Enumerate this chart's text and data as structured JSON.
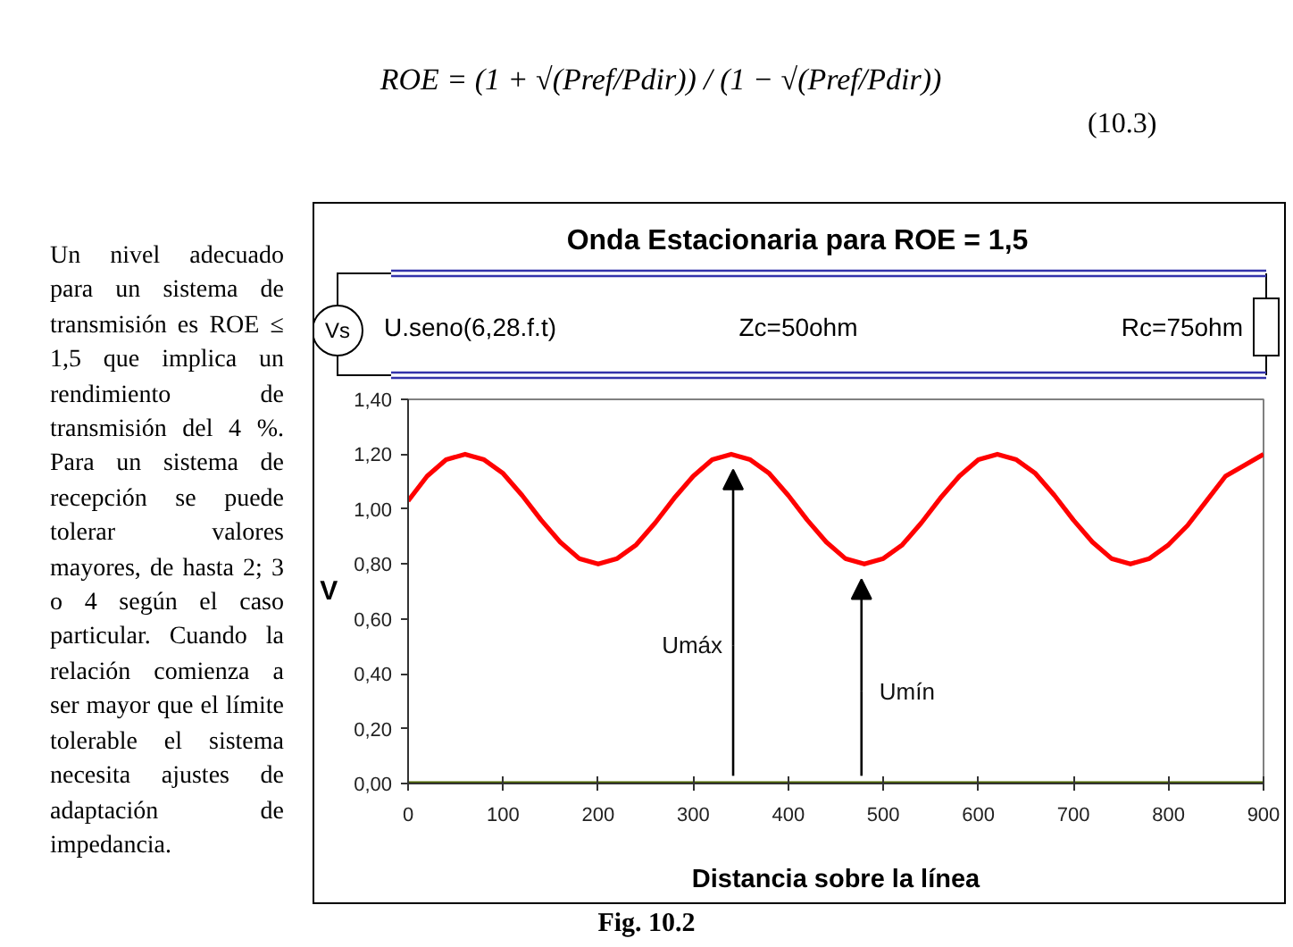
{
  "chart_data": {
    "type": "line",
    "title": "Onda Estacionaria para ROE = 1,5",
    "xlabel": "Distancia sobre la línea",
    "ylabel": "V",
    "xlim": [
      0,
      900
    ],
    "xticks": [
      0,
      100,
      200,
      300,
      400,
      500,
      600,
      700,
      800,
      900
    ],
    "ylim": [
      0,
      1.4
    ],
    "yticks": [
      {
        "value": 0,
        "label": "0,00"
      },
      {
        "value": 0.2,
        "label": "0,20"
      },
      {
        "value": 0.4,
        "label": "0,40"
      },
      {
        "value": 0.6,
        "label": "0,60"
      },
      {
        "value": 0.8,
        "label": "0,80"
      },
      {
        "value": 1.0,
        "label": "1,00"
      },
      {
        "value": 1.2,
        "label": "1,20"
      },
      {
        "value": 1.4,
        "label": "1,40"
      }
    ],
    "series": [
      {
        "color": "#ff0000",
        "x": [
          0,
          20,
          40,
          60,
          80,
          100,
          120,
          140,
          160,
          180,
          200,
          220,
          240,
          260,
          280,
          300,
          320,
          340,
          360,
          380,
          400,
          420,
          440,
          460,
          480,
          500,
          520,
          540,
          560,
          580,
          600,
          620,
          640,
          660,
          680,
          700,
          720,
          740,
          760,
          780,
          800,
          820,
          840,
          860,
          880,
          900
        ],
        "values": [
          1.03,
          1.12,
          1.18,
          1.2,
          1.18,
          1.13,
          1.05,
          0.96,
          0.88,
          0.82,
          0.8,
          0.82,
          0.87,
          0.95,
          1.04,
          1.12,
          1.18,
          1.2,
          1.18,
          1.13,
          1.05,
          0.96,
          0.88,
          0.82,
          0.8,
          0.82,
          0.87,
          0.95,
          1.04,
          1.12,
          1.18,
          1.2,
          1.18,
          1.13,
          1.05,
          0.96,
          0.88,
          0.82,
          0.8,
          0.82,
          0.87,
          0.94,
          1.03,
          1.12,
          1.16,
          1.2
        ]
      },
      {
        "color": "#4d6600",
        "x": [
          0,
          900
        ],
        "values": [
          0,
          0
        ]
      }
    ],
    "annotations": [
      "ROE = (1 + √(Pref/Pdir)) / (1 − √(Pref/Pdir))",
      "(10.3)",
      "Un nivel adecuado para un sistema de transmisión es ROE ≤ 1,5 que implica un rendimiento de transmisión del 4 %. Para un sistema de recepción se puede tolerar valores mayores, de hasta 2; 3 o 4 según el caso particular. Cuando la relación comienza a ser mayor que el límite tolerable el sistema necesita ajustes de adaptación de impedancia.",
      "Vs",
      "U.seno(6,28.f.t)",
      "Zc=50ohm",
      "Rc=75ohm",
      {
        "text": "Umáx",
        "x": 342,
        "y": 1.2
      },
      {
        "text": "Umín",
        "x": 477,
        "y": 0.8
      },
      "Fig. 10.2"
    ]
  }
}
